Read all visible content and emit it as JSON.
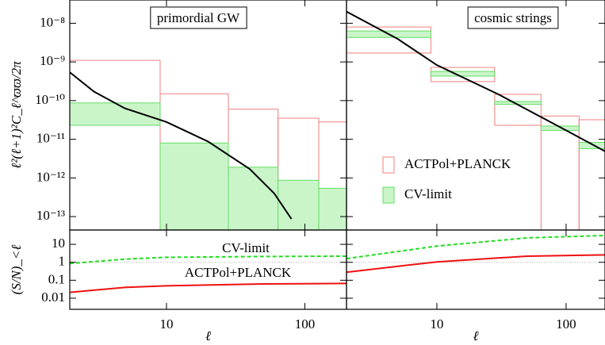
{
  "chart_data": [
    {
      "type": "binned",
      "title": "primordial GW",
      "ylabel": "ℓ²(ℓ+1)²C_ℓ^ϖϖ/2π",
      "xscale": "log",
      "yscale": "log",
      "xlim": [
        2,
        200
      ],
      "xticks": [
        10,
        100
      ],
      "ylim": [
        4.5e-14,
        4e-08
      ],
      "yticks": [
        {
          "value": 1e-08,
          "label": "10⁻⁸"
        },
        {
          "value": 1e-09,
          "label": "10⁻⁹"
        },
        {
          "value": 1e-10,
          "label": "10⁻¹⁰"
        },
        {
          "value": 1e-11,
          "label": "10⁻¹¹"
        },
        {
          "value": 1e-12,
          "label": "10⁻¹²"
        },
        {
          "value": 1e-13,
          "label": "10⁻¹³"
        }
      ],
      "bins": [
        2,
        9,
        28,
        64,
        126,
        200
      ],
      "series": [
        {
          "color": "#f08080",
          "fill": "none",
          "upper": [
            1.1e-09,
            1.5e-10,
            6e-11,
            3.5e-11,
            2.8e-11
          ],
          "lower": [
            null,
            null,
            null,
            null,
            null
          ]
        },
        {
          "color": "#66dd66",
          "fill": "#c9f5c9",
          "upper": [
            8.7e-11,
            8e-12,
            1.9e-12,
            8.7e-13,
            5.4e-13
          ],
          "lower": [
            2.3e-11,
            null,
            null,
            null,
            null
          ]
        }
      ],
      "curve": {
        "color": "#000000",
        "x": [
          2,
          3,
          5,
          10,
          20,
          40,
          60,
          80
        ],
        "values": [
          5.4e-10,
          1.7e-10,
          6.3e-11,
          2.8e-11,
          8.7e-12,
          1.7e-12,
          4e-13,
          8.7e-14
        ]
      }
    },
    {
      "type": "binned",
      "title": "cosmic strings",
      "xscale": "log",
      "yscale": "log",
      "xlim": [
        2,
        200
      ],
      "xticks": [
        10,
        100
      ],
      "ylim": [
        4.5e-14,
        4e-08
      ],
      "yticks": [
        1e-08,
        1e-09,
        1e-10,
        1e-11,
        1e-12,
        1e-13
      ],
      "bins": [
        2,
        9,
        28,
        64,
        126,
        200
      ],
      "series": [
        {
          "name": "ACTPol+PLANCK",
          "color": "#f08080",
          "fill": "none",
          "upper": [
            8e-09,
            7.2e-10,
            1.45e-10,
            4e-11,
            3.2e-11
          ],
          "lower": [
            1.7e-09,
            3.1e-10,
            2.3e-11,
            null,
            null
          ]
        },
        {
          "name": "CV-limit",
          "color": "#66dd66",
          "fill": "#c9f5c9",
          "upper": [
            6.3e-09,
            5.7e-10,
            9.5e-11,
            2.2e-11,
            8.3e-12
          ],
          "lower": [
            4.3e-09,
            4.3e-10,
            8e-11,
            1.7e-11,
            5.7e-12
          ]
        }
      ],
      "curve": {
        "color": "#000000",
        "x": [
          2,
          5,
          10,
          30,
          100,
          200
        ],
        "values": [
          2e-08,
          3.9e-09,
          8.3e-10,
          1.45e-10,
          1.7e-11,
          4.9e-12
        ]
      }
    },
    {
      "type": "line",
      "xlabel": "ℓ",
      "ylabel": "(S/N)_<ℓ",
      "xscale": "log",
      "yscale": "log",
      "xlim": [
        2,
        200
      ],
      "xticks": [
        10,
        100
      ],
      "ylim": [
        0.0024,
        63
      ],
      "yticks": [
        10,
        1,
        0.1,
        0.01
      ],
      "reference": 1,
      "x": [
        2,
        5,
        10,
        50,
        200
      ],
      "series": [
        {
          "name": "CV-limit",
          "color": "#22dd22",
          "dashed": true,
          "values": [
            0.85,
            1.5,
            1.9,
            2.1,
            2.2
          ]
        },
        {
          "name": "ACTPol+PLANCK",
          "color": "#ee1111",
          "dashed": false,
          "values": [
            0.021,
            0.04,
            0.049,
            0.062,
            0.066
          ]
        }
      ]
    },
    {
      "type": "line",
      "xlabel": "ℓ",
      "xscale": "log",
      "yscale": "log",
      "xlim": [
        2,
        200
      ],
      "xticks": [
        10,
        100
      ],
      "ylim": [
        0.0024,
        63
      ],
      "yticks": [
        10,
        1,
        0.1,
        0.01
      ],
      "reference": 1,
      "x": [
        2,
        5,
        10,
        50,
        200
      ],
      "series": [
        {
          "color": "#22dd22",
          "dashed": true,
          "values": [
            1.6,
            4,
            8,
            23,
            31
          ]
        },
        {
          "color": "#ee1111",
          "dashed": false,
          "values": [
            0.28,
            0.6,
            1.05,
            2.2,
            2.6
          ]
        }
      ]
    }
  ]
}
